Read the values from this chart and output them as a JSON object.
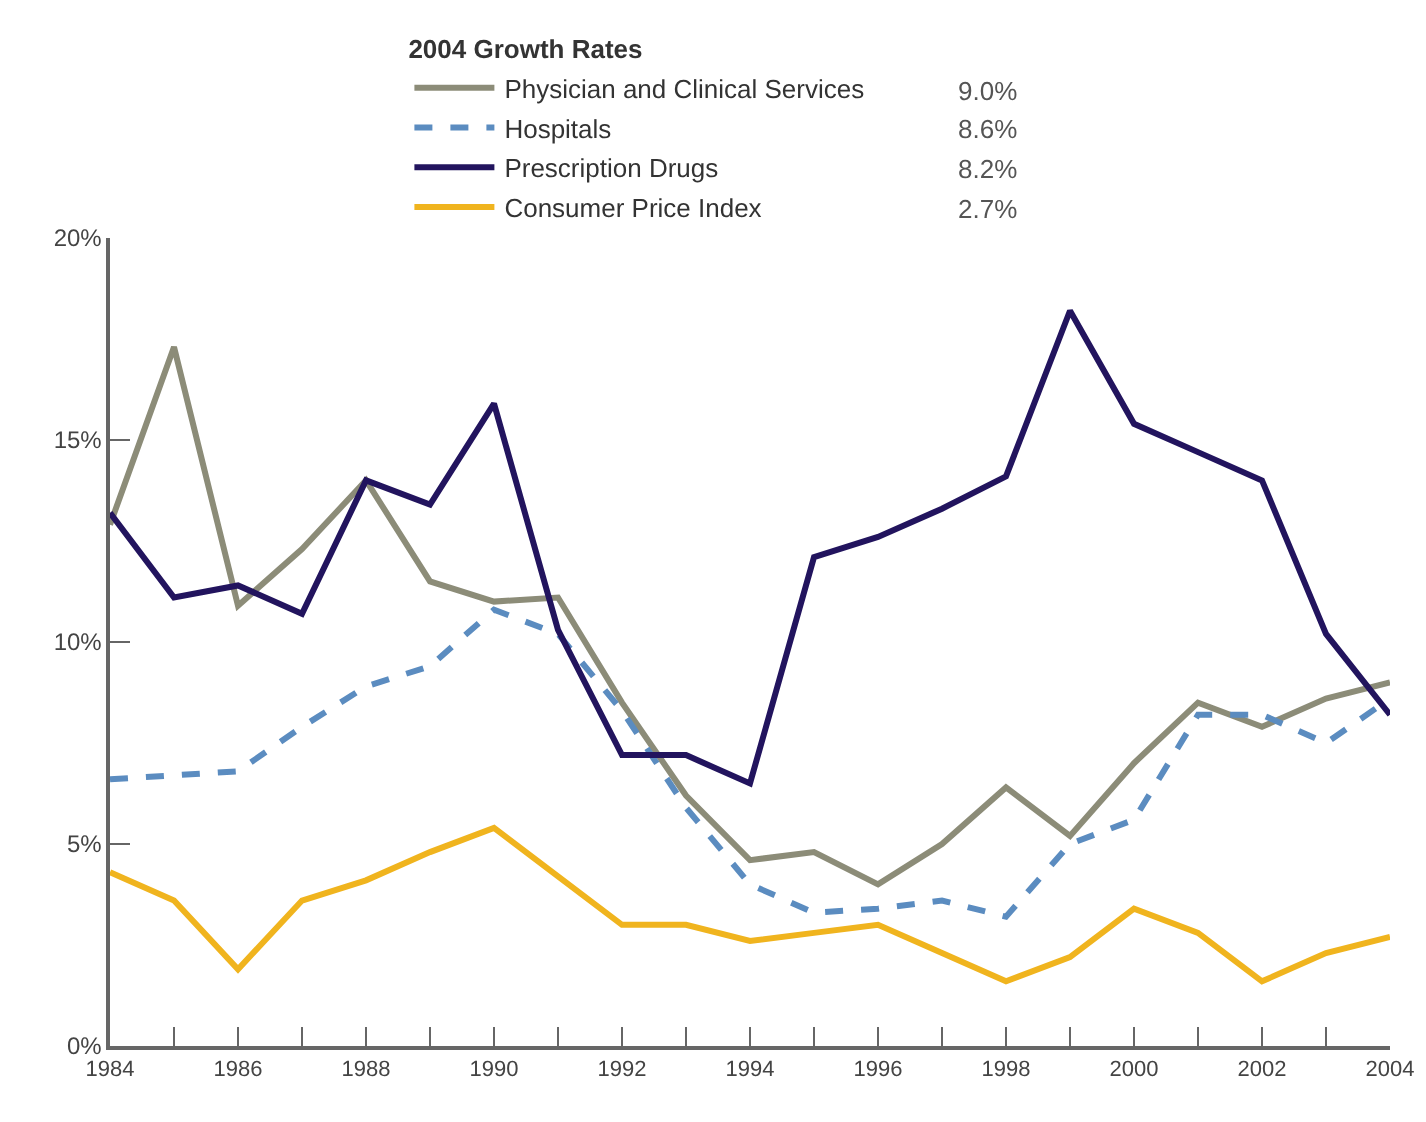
{
  "chart_data": {
    "type": "line",
    "legend_title": "2004 Growth Rates",
    "x": [
      1984,
      1985,
      1986,
      1987,
      1988,
      1989,
      1990,
      1991,
      1992,
      1993,
      1994,
      1995,
      1996,
      1997,
      1998,
      1999,
      2000,
      2001,
      2002,
      2003,
      2004
    ],
    "series": [
      {
        "name": "Physician and Clinical Services",
        "color": "#8c8c78",
        "line_style": "solid",
        "values": [
          12.9,
          17.3,
          10.9,
          12.3,
          14.0,
          11.5,
          11.0,
          11.1,
          8.5,
          6.2,
          4.6,
          4.8,
          4.0,
          5.0,
          6.4,
          5.2,
          7.0,
          8.5,
          7.9,
          8.6,
          9.0
        ]
      },
      {
        "name": "Hospitals",
        "color": "#5b8cc0",
        "line_style": "dashed",
        "values": [
          6.6,
          6.7,
          6.8,
          7.9,
          8.9,
          9.4,
          10.8,
          10.2,
          8.3,
          5.9,
          4.0,
          3.3,
          3.4,
          3.6,
          3.2,
          5.0,
          5.6,
          8.2,
          8.2,
          7.5,
          8.6
        ]
      },
      {
        "name": "Prescription Drugs",
        "color": "#22145e",
        "line_style": "solid",
        "values": [
          13.2,
          11.1,
          11.4,
          10.7,
          14.0,
          13.4,
          15.9,
          10.3,
          7.2,
          7.2,
          6.5,
          12.1,
          12.6,
          13.3,
          14.1,
          18.2,
          15.4,
          14.7,
          14.0,
          10.2,
          8.2
        ]
      },
      {
        "name": "Consumer Price Index",
        "color": "#f0b41e",
        "line_style": "solid",
        "values": [
          4.3,
          3.6,
          1.9,
          3.6,
          4.1,
          4.8,
          5.4,
          4.2,
          3.0,
          3.0,
          2.6,
          2.8,
          3.0,
          2.3,
          1.6,
          2.2,
          3.4,
          2.8,
          1.6,
          2.3,
          2.7
        ]
      }
    ],
    "annotations": [
      "9.0%",
      "8.6%",
      "8.2%",
      "2.7%"
    ],
    "xlim": [
      1984,
      2004
    ],
    "xticks": [
      1984,
      {
        "value": 1985,
        "label": null
      },
      1986,
      {
        "value": 1987,
        "label": null
      },
      1988,
      {
        "value": 1989,
        "label": null
      },
      1990,
      {
        "value": 1991,
        "label": null
      },
      1992,
      {
        "value": 1993,
        "label": null
      },
      1994,
      {
        "value": 1995,
        "label": null
      },
      1996,
      {
        "value": 1997,
        "label": null
      },
      1998,
      {
        "value": 1999,
        "label": null
      },
      2000,
      {
        "value": 2001,
        "label": null
      },
      2002,
      {
        "value": 2003,
        "label": null
      },
      2004
    ],
    "ylim": [
      0,
      20
    ],
    "yticks": [
      {
        "value": 0,
        "label": "0%"
      },
      {
        "value": 5,
        "label": "5%"
      },
      {
        "value": 10,
        "label": "10%"
      },
      {
        "value": 15,
        "label": "15%"
      },
      {
        "value": 20,
        "label": "20%"
      }
    ],
    "grid": false,
    "legend": "top",
    "marker": "none"
  }
}
